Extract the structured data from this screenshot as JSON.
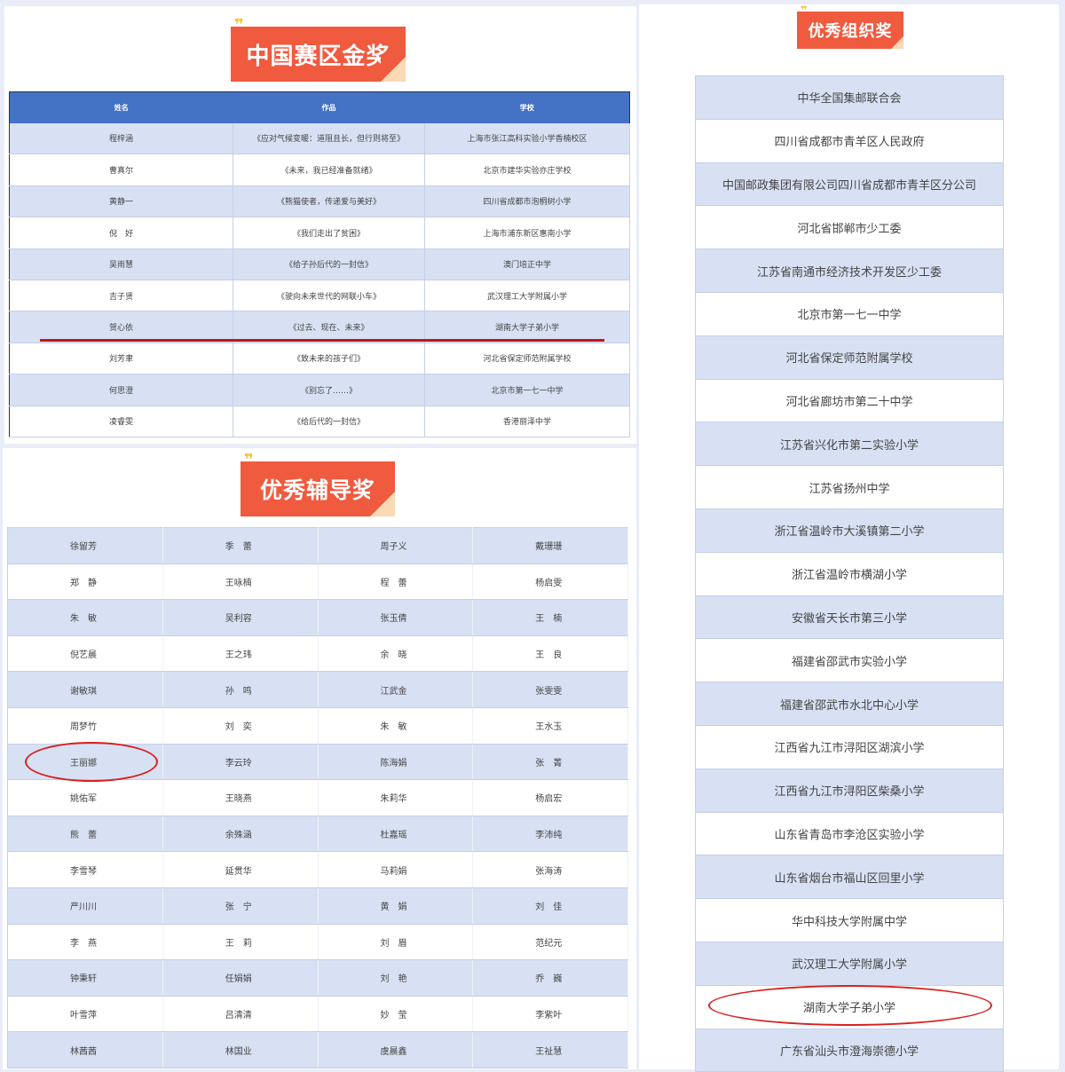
{
  "gold": {
    "title": "中国赛区金奖",
    "headers": [
      "姓名",
      "作品",
      "学校"
    ],
    "rows": [
      [
        "程梓涵",
        "《应对气候变暖：道阻且长，但行则将至》",
        "上海市张江高科实验小学香楠校区"
      ],
      [
        "曹真尔",
        "《未来，我已经准备就绪》",
        "北京市建华实验亦庄学校"
      ],
      [
        "黄静一",
        "《熊猫使者，传递爱与美好》",
        "四川省成都市泡桐树小学"
      ],
      [
        "倪　好",
        "《我们走出了贫困》",
        "上海市浦东新区惠南小学"
      ],
      [
        "吴雨慧",
        "《给子孙后代的一封信》",
        "澳门培正中学"
      ],
      [
        "吉子贤",
        "《驶向未来世代的网联小车》",
        "武汉理工大学附属小学"
      ],
      [
        "贺心依",
        "《过去、现在、未来》",
        "湖南大学子弟小学"
      ],
      [
        "刘芳聿",
        "《致未来的孩子们》",
        "河北省保定师范附属学校"
      ],
      [
        "何思澄",
        "《别忘了……》",
        "北京市第一七一中学"
      ],
      [
        "凌睿雯",
        "《给后代的一封信》",
        "香港丽泽中学"
      ]
    ]
  },
  "tutor": {
    "title": "优秀辅导奖",
    "rows": [
      [
        "徐留芳",
        "季　蕾",
        "周子义",
        "戴珊珊"
      ],
      [
        "郑　静",
        "王咏楠",
        "程　蕾",
        "杨启雯"
      ],
      [
        "朱　敏",
        "吴利容",
        "张玉倩",
        "王　楠"
      ],
      [
        "倪艺晨",
        "王之玮",
        "余　晓",
        "王　良"
      ],
      [
        "谢敏琪",
        "孙　鸣",
        "江武金",
        "张雯雯"
      ],
      [
        "周梦竹",
        "刘　奕",
        "朱　敏",
        "王水玉"
      ],
      [
        "王丽娜",
        "李云玲",
        "陈海娟",
        "张　菁"
      ],
      [
        "姚佑军",
        "王晓燕",
        "朱莉华",
        "杨启宏"
      ],
      [
        "熊　蕾",
        "余殊涵",
        "杜嘉瑶",
        "李沛纯"
      ],
      [
        "李雪琴",
        "延贯华",
        "马莉娟",
        "张海涛"
      ],
      [
        "严川川",
        "张　宁",
        "黄　娟",
        "刘　佳"
      ],
      [
        "李　燕",
        "王　莉",
        "刘　眉",
        "范纪元"
      ],
      [
        "钟秉轩",
        "任娟娟",
        "刘　艳",
        "乔　巍"
      ],
      [
        "叶雪萍",
        "吕清清",
        "妙　莹",
        "李紫叶"
      ],
      [
        "林茜茜",
        "林国业",
        "虞晨鑫",
        "王祉慧"
      ]
    ]
  },
  "org": {
    "title": "优秀组织奖",
    "items": [
      "中华全国集邮联合会",
      "四川省成都市青羊区人民政府",
      "中国邮政集团有限公司四川省成都市青羊区分公司",
      "河北省邯郸市少工委",
      "江苏省南通市经济技术开发区少工委",
      "北京市第一七一中学",
      "河北省保定师范附属学校",
      "河北省廊坊市第二十中学",
      "江苏省兴化市第二实验小学",
      "江苏省扬州中学",
      "浙江省温岭市大溪镇第二小学",
      "浙江省温岭市横湖小学",
      "安徽省天长市第三小学",
      "福建省邵武市实验小学",
      "福建省邵武市水北中心小学",
      "江西省九江市浔阳区湖滨小学",
      "江西省九江市浔阳区柴桑小学",
      "山东省青岛市李沧区实验小学",
      "山东省烟台市福山区回里小学",
      "华中科技大学附属中学",
      "武汉理工大学附属小学",
      "湖南大学子弟小学",
      "广东省汕头市澄海崇德小学"
    ]
  },
  "colors": {
    "badge": "#f05a3f",
    "header": "#4472c4",
    "row_alt": "#d8e1f3",
    "highlight": "#d82020"
  }
}
